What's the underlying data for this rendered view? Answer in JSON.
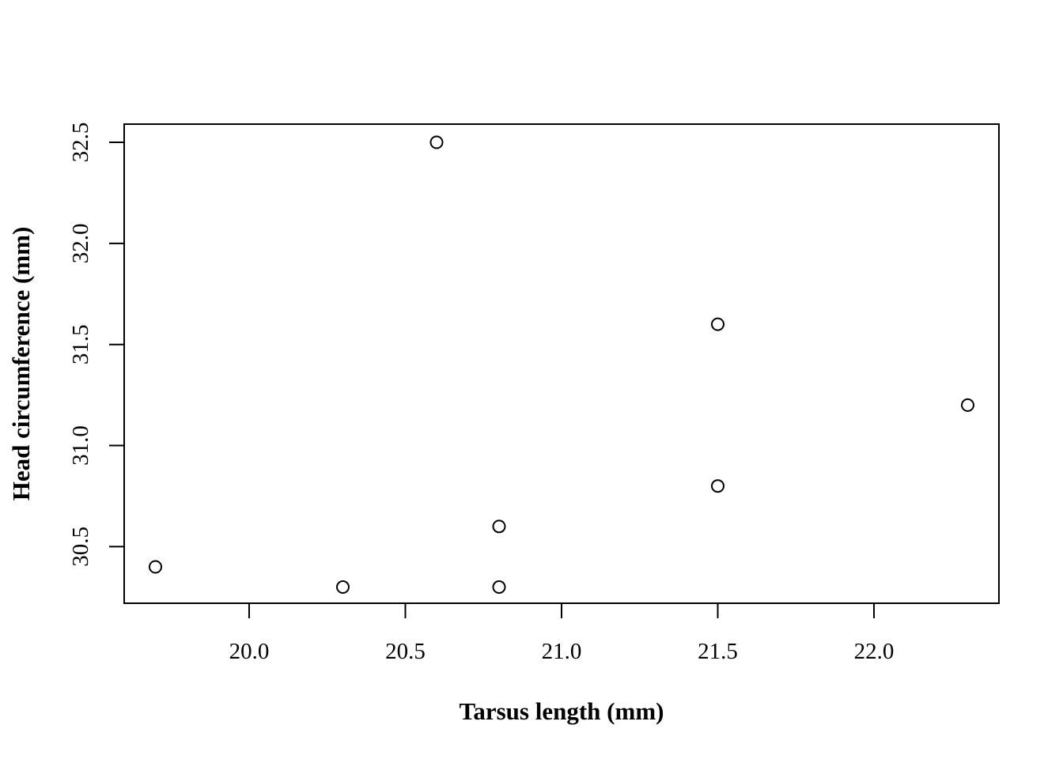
{
  "chart_data": {
    "type": "scatter",
    "title": "",
    "xlabel": "Tarsus length (mm)",
    "ylabel": "Head circumference (mm)",
    "xlim": [
      19.6,
      22.4
    ],
    "ylim": [
      30.22,
      32.59
    ],
    "x_ticks": [
      "20.0",
      "20.5",
      "21.0",
      "21.5",
      "22.0"
    ],
    "y_ticks": [
      "30.5",
      "31.0",
      "31.5",
      "32.0",
      "32.5"
    ],
    "grid": false,
    "marker": "open-circle",
    "series": [
      {
        "points": [
          {
            "x": 19.7,
            "y": 30.4
          },
          {
            "x": 20.3,
            "y": 30.3
          },
          {
            "x": 20.6,
            "y": 32.5
          },
          {
            "x": 20.8,
            "y": 30.6
          },
          {
            "x": 20.8,
            "y": 30.3
          },
          {
            "x": 21.5,
            "y": 31.6
          },
          {
            "x": 21.5,
            "y": 30.8
          },
          {
            "x": 22.3,
            "y": 31.2
          }
        ]
      }
    ]
  }
}
